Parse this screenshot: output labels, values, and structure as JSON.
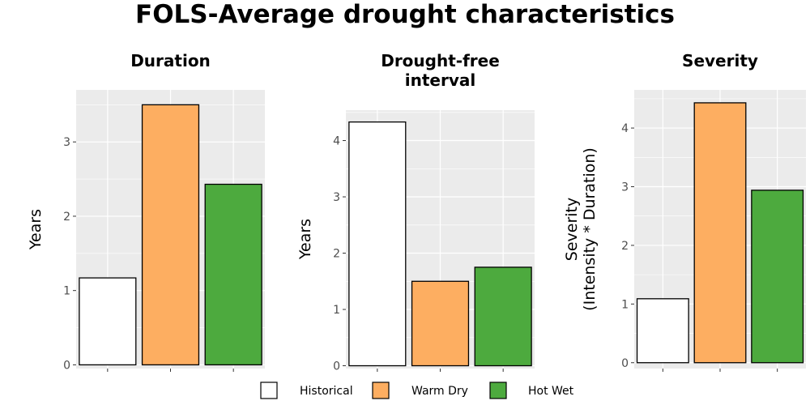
{
  "title": "FOLS-Average drought characteristics",
  "legend": {
    "placement": "bottom",
    "entries": [
      {
        "label": "Historical",
        "color": "#ffffff"
      },
      {
        "label": "Warm Dry",
        "color": "#fdae61"
      },
      {
        "label": "Hot Wet",
        "color": "#4daa3e"
      }
    ]
  },
  "colors": {
    "panel_background": "#ebebeb",
    "gridline": "#ffffff",
    "bar_outline": "#000000"
  },
  "chart_data": [
    {
      "type": "bar",
      "title_lines": [
        "Duration"
      ],
      "ylabel_lines": [
        "Years"
      ],
      "categories": [
        "Historical",
        "Warm Dry",
        "Hot Wet"
      ],
      "values": [
        1.17,
        3.5,
        2.43
      ],
      "ylim": [
        -0.05,
        3.7
      ],
      "yticks": [
        0,
        1,
        2,
        3
      ],
      "grid": true
    },
    {
      "type": "bar",
      "title_lines": [
        "Drought-free",
        "interval"
      ],
      "ylabel_lines": [
        "Years"
      ],
      "categories": [
        "Historical",
        "Warm Dry",
        "Hot Wet"
      ],
      "values": [
        4.33,
        1.5,
        1.75
      ],
      "ylim": [
        -0.05,
        4.54
      ],
      "yticks": [
        0,
        1,
        2,
        3,
        4
      ],
      "grid": true
    },
    {
      "type": "bar",
      "title_lines": [
        "Severity"
      ],
      "ylabel_lines": [
        "Severity",
        "(Intensity * Duration)"
      ],
      "categories": [
        "Historical",
        "Warm Dry",
        "Hot Wet"
      ],
      "values": [
        1.09,
        4.43,
        2.94
      ],
      "ylim": [
        -0.1,
        4.65
      ],
      "yticks": [
        0,
        1,
        2,
        3,
        4
      ],
      "grid": true
    }
  ]
}
